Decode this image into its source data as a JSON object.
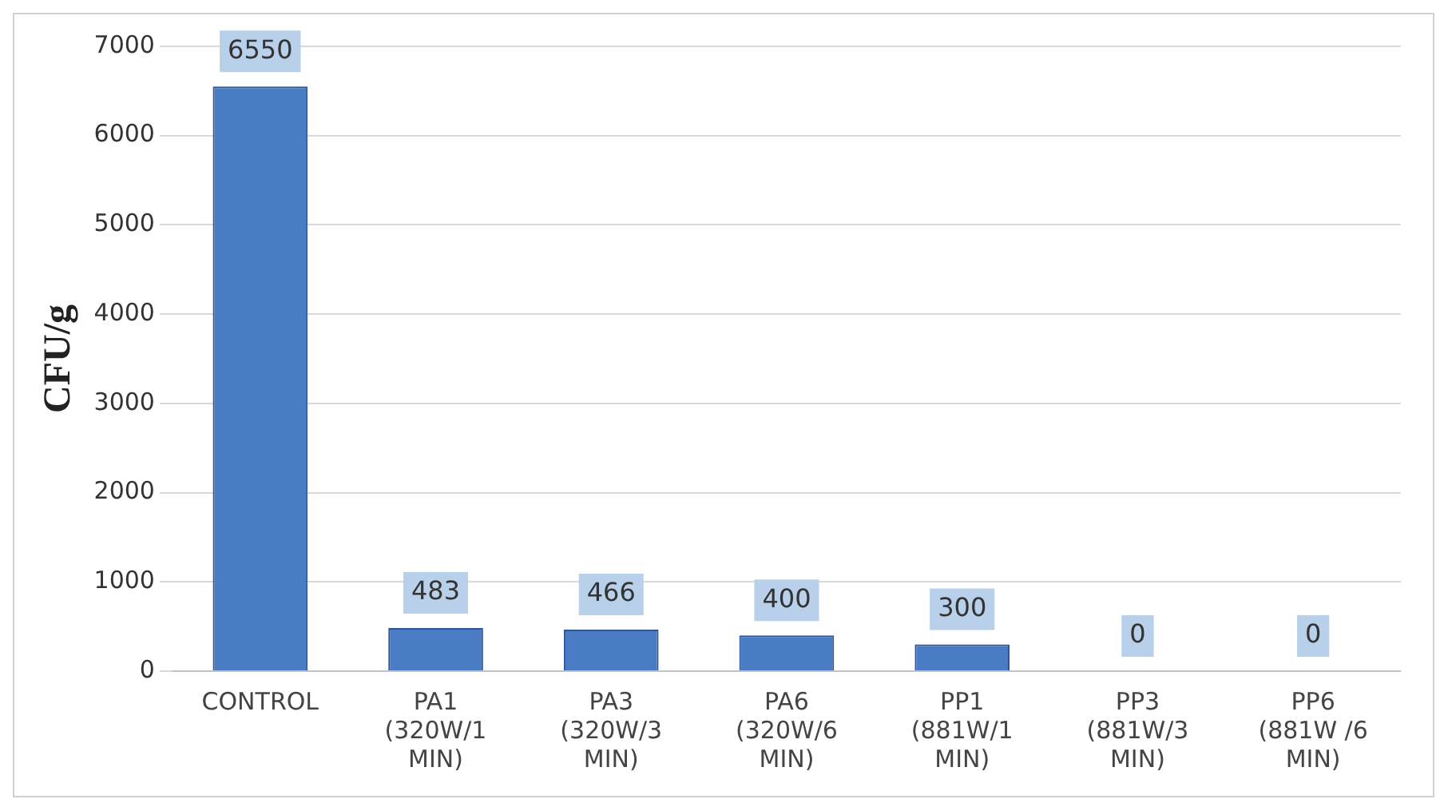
{
  "chart_data": {
    "type": "bar",
    "ylabel": "CFU/g",
    "categories": [
      "CONTROL",
      "PA1 (320W/1 MIN)",
      "PA3 (320W/3 MIN)",
      "PA6 (320W/6 MIN)",
      "PP1 (881W/1 MIN)",
      "PP3 (881W/3 MIN)",
      "PP6 (881W /6 MIN)"
    ],
    "values": [
      6550,
      483,
      466,
      400,
      300,
      0,
      0
    ],
    "color": "#4a7cc4",
    "ylim": [
      0,
      7000
    ],
    "yticks": [
      0,
      1000,
      2000,
      3000,
      4000,
      5000,
      6000,
      7000
    ],
    "grid": "y",
    "data_labels": true
  }
}
